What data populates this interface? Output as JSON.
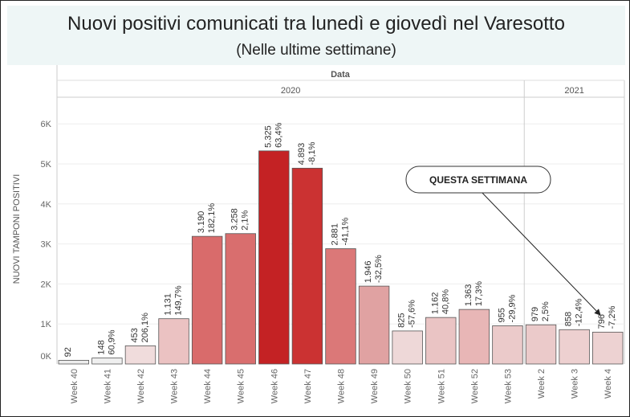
{
  "header": {
    "title": "Nuovi positivi comunicati tra lunedì e giovedì nel Varesotto",
    "subtitle": "(Nelle ultime settimane)"
  },
  "chart_data": {
    "type": "bar",
    "top_axis_title": "Data",
    "years": [
      {
        "label": "2020",
        "from": 0,
        "to": 13
      },
      {
        "label": "2021",
        "from": 14,
        "to": 16
      }
    ],
    "ylabel": "NUOVI TAMPONI POSITIVI",
    "ylim": [
      0,
      6500
    ],
    "yticks": [
      {
        "value": 0,
        "label": "0K"
      },
      {
        "value": 1000,
        "label": "1K"
      },
      {
        "value": 2000,
        "label": "2K"
      },
      {
        "value": 3000,
        "label": "3K"
      },
      {
        "value": 4000,
        "label": "4K"
      },
      {
        "value": 5000,
        "label": "5K"
      },
      {
        "value": 6000,
        "label": "6K"
      }
    ],
    "categories": [
      "Week 40",
      "Week 41",
      "Week 42",
      "Week 43",
      "Week 44",
      "Week 45",
      "Week 46",
      "Week 47",
      "Week 48",
      "Week 49",
      "Week 50",
      "Week 51",
      "Week 52",
      "Week 53",
      "Week 2",
      "Week 3",
      "Week 4"
    ],
    "values": [
      92,
      148,
      453,
      1131,
      3190,
      3258,
      5325,
      4893,
      2881,
      1946,
      825,
      1162,
      1363,
      955,
      979,
      858,
      796
    ],
    "value_labels": [
      "92",
      "148",
      "453",
      "1.131",
      "3.190",
      "3.258",
      "5.325",
      "4.893",
      "2.881",
      "1.946",
      "825",
      "1.162",
      "1.363",
      "955",
      "979",
      "858",
      "796"
    ],
    "change_labels": [
      "",
      "60,9%",
      "206,1%",
      "149,7%",
      "182,1%",
      "2,1%",
      "63,4%",
      "-8,1%",
      "-41,1%",
      "-32,5%",
      "-57,6%",
      "40,8%",
      "17,3%",
      "-29,9%",
      "2,5%",
      "-12,4%",
      "-7,2%"
    ],
    "bar_colors": [
      "#ececec",
      "#efefef",
      "#f0dcdc",
      "#ebc2c2",
      "#d96b6b",
      "#d96e6e",
      "#c42224",
      "#cb3232",
      "#db7878",
      "#e0a2a2",
      "#eed8d8",
      "#eac4c4",
      "#e8b6b6",
      "#ebcaca",
      "#ebcaca",
      "#edd0d0",
      "#edd2d2"
    ],
    "grid": true,
    "annotation": {
      "text": "QUESTA SETTIMANA",
      "target_index": 16
    }
  }
}
